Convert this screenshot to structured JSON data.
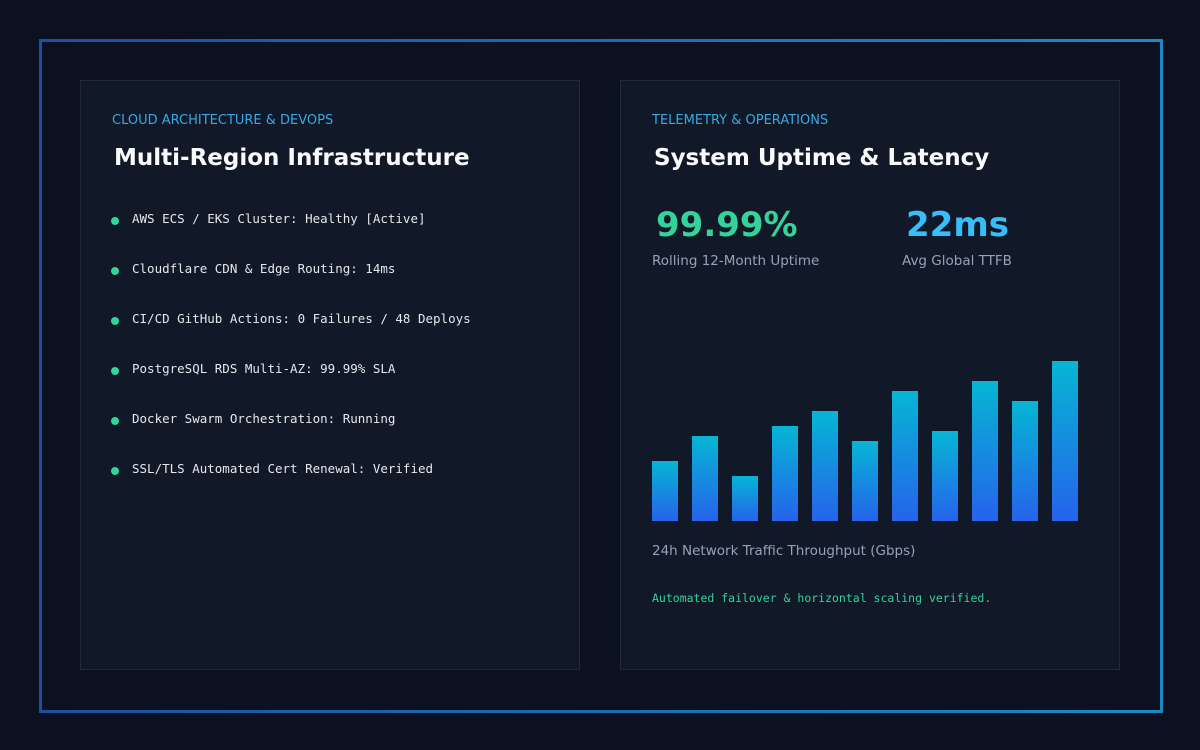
{
  "architecture": {
    "eyebrow": "CLOUD ARCHITECTURE & DEVOPS",
    "title": "Multi-Region Infrastructure",
    "items": [
      "AWS ECS / EKS Cluster: Healthy [Active]",
      "Cloudflare CDN & Edge Routing: 14ms",
      "CI/CD GitHub Actions: 0 Failures / 48 Deploys",
      "PostgreSQL RDS Multi-AZ: 99.99% SLA",
      "Docker Swarm Orchestration: Running",
      "SSL/TLS Automated Cert Renewal: Verified"
    ]
  },
  "telemetry": {
    "eyebrow": "TELEMETRY & OPERATIONS",
    "title": "System Uptime & Latency",
    "stats": [
      {
        "value": "99.99%",
        "label": "Rolling 12-Month Uptime"
      },
      {
        "value": "22ms",
        "label": "Avg Global TTFB"
      }
    ],
    "note": "Automated failover & horizontal scaling verified."
  },
  "chart_data": {
    "type": "bar",
    "title": "24h Network Traffic Throughput (Gbps)",
    "values": [
      60,
      85,
      45,
      95,
      110,
      80,
      130,
      90,
      140,
      120,
      160
    ],
    "ylim": [
      0,
      160
    ]
  }
}
